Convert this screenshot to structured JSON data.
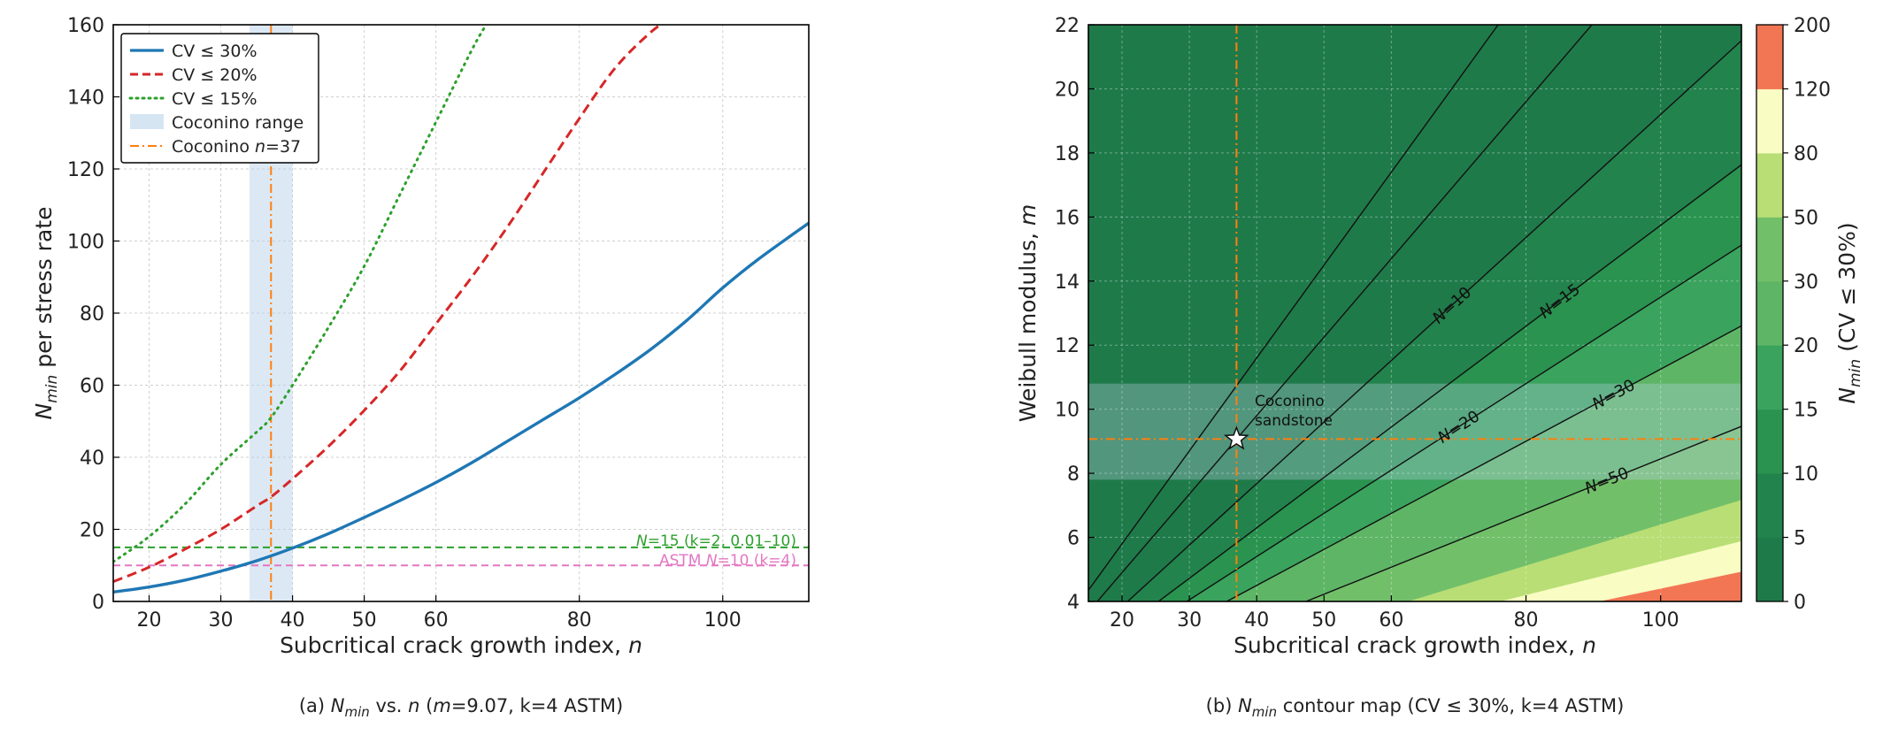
{
  "chart_data": [
    {
      "type": "line",
      "caption": "(a)  N_min vs. n  (m=9.07, k=4 ASTM)",
      "caption_parts": {
        "prefix": "(a)  ",
        "sym": "N",
        "sub": "min",
        "rest": " vs. ",
        "n": "n",
        "tail1": "  (",
        "m": "m",
        "tail2": "=9.07, k=4 ASTM)"
      },
      "xlabel": "Subcritical crack growth index, n",
      "xlabel_parts": {
        "text": "Subcritical crack growth index, ",
        "var": "n"
      },
      "ylabel": "N_min per stress rate",
      "ylabel_parts": {
        "sym": "N",
        "sub": "min",
        "text": " per stress rate"
      },
      "xlim": [
        15,
        112
      ],
      "ylim": [
        0,
        160
      ],
      "xticks": [
        20,
        30,
        40,
        50,
        60,
        80,
        100
      ],
      "yticks": [
        0,
        20,
        40,
        60,
        80,
        100,
        120,
        140,
        160
      ],
      "grid": true,
      "legend_position": "top-left",
      "series": [
        {
          "name": "CV ≤ 30%",
          "style": "solid",
          "color": "#1f77b4",
          "x": [
            15,
            20,
            25,
            30,
            35,
            40,
            45,
            50,
            55,
            60,
            65,
            70,
            75,
            80,
            85,
            90,
            95,
            100,
            105,
            112
          ],
          "y": [
            2.6,
            4.0,
            5.9,
            8.4,
            11.3,
            14.8,
            18.8,
            23.3,
            28.0,
            33.0,
            38.5,
            44.5,
            50.5,
            56.5,
            63,
            70,
            78,
            87,
            95,
            105
          ]
        },
        {
          "name": "CV ≤ 20%",
          "style": "dashed",
          "color": "#d62728",
          "x": [
            15,
            20,
            25,
            30,
            35,
            37,
            40,
            45,
            50,
            55,
            60,
            65,
            70,
            75,
            80,
            85,
            90,
            93
          ],
          "y": [
            5.5,
            9.5,
            14.5,
            20,
            26.5,
            29,
            34,
            43,
            53,
            64,
            77,
            90,
            104,
            119,
            134,
            148,
            158,
            162
          ]
        },
        {
          "name": "CV ≤ 15%",
          "style": "dotted",
          "color": "#2ca02c",
          "x": [
            15,
            20,
            25,
            30,
            35,
            37,
            40,
            45,
            50,
            55,
            60,
            65,
            67
          ],
          "y": [
            11,
            18,
            27,
            38,
            47,
            51,
            60,
            76,
            93,
            113,
            133,
            153,
            160
          ]
        }
      ],
      "shaded_band": {
        "name": "Coconino range",
        "x_from": 34,
        "x_to": 40,
        "color": "#b9d3ea"
      },
      "vline": {
        "name": "Coconino n=37",
        "name_parts": {
          "text": "Coconino ",
          "var": "n",
          "rest": "=37"
        },
        "x": 37,
        "color": "#ff7f0e"
      },
      "hlines": [
        {
          "y": 15,
          "label": "N=15 (k=2, 0.01–10)",
          "label_parts": {
            "sym": "N",
            "rest": "=15 (k=2, 0.01–10)"
          },
          "color": "#2ca02c"
        },
        {
          "y": 10,
          "label": "ASTM N=10 (k=4)",
          "label_parts": {
            "pre": "ASTM ",
            "sym": "N",
            "rest": "=10 (k=4)"
          },
          "color": "#e377c2"
        }
      ]
    },
    {
      "type": "heatmap",
      "caption": "(b)  N_min contour map (CV ≤ 30%, k=4 ASTM)",
      "caption_parts": {
        "prefix": "(b)  ",
        "sym": "N",
        "sub": "min",
        "rest": " contour map (CV ≤ 30%, k=4 ASTM)"
      },
      "xlabel": "Subcritical crack growth index, n",
      "xlabel_parts": {
        "text": "Subcritical crack growth index, ",
        "var": "n"
      },
      "ylabel": "Weibull modulus, m",
      "ylabel_parts": {
        "text": "Weibull modulus, ",
        "var": "m"
      },
      "xlim": [
        15,
        112
      ],
      "ylim": [
        4,
        22
      ],
      "xticks": [
        20,
        30,
        40,
        50,
        60,
        80,
        100
      ],
      "yticks": [
        4,
        6,
        8,
        10,
        12,
        14,
        16,
        18,
        20,
        22
      ],
      "grid": true,
      "contour_levels": [
        {
          "label": "N=10",
          "label_parts": {
            "sym": "N",
            "rest": "=10"
          },
          "slope": 0.192,
          "label_x": 69
        },
        {
          "label": "N=15",
          "label_parts": {
            "sym": "N",
            "rest": "=15"
          },
          "slope": 0.1574,
          "label_x": 85
        },
        {
          "label": "N=20",
          "label_parts": {
            "sym": "N",
            "rest": "=20"
          },
          "slope": 0.135,
          "label_x": 70
        },
        {
          "label": "N=30",
          "label_parts": {
            "sym": "N",
            "rest": "=30"
          },
          "slope": 0.1125,
          "label_x": 93
        },
        {
          "label": "N=50",
          "label_parts": {
            "sym": "N",
            "rest": "=50"
          },
          "slope": 0.0845,
          "label_x": 92
        }
      ],
      "fill_bands": [
        {
          "from": 0,
          "to": 5,
          "slope_boundary": null,
          "color": "#1f7a4a"
        },
        {
          "from": 5,
          "to": 10,
          "slope_boundary": 0.192,
          "color": "#22834c"
        },
        {
          "from": 10,
          "to": 15,
          "slope_boundary": 0.1574,
          "color": "#29934f"
        },
        {
          "from": 15,
          "to": 20,
          "slope_boundary": 0.135,
          "color": "#3aa35d"
        },
        {
          "from": 20,
          "to": 30,
          "slope_boundary": 0.1125,
          "color": "#5eb566"
        },
        {
          "from": 30,
          "to": 50,
          "slope_boundary": 0.0845,
          "color": "#72bf6a"
        },
        {
          "from": 50,
          "to": 80,
          "slope_boundary": 0.064,
          "color": "#b8de75"
        },
        {
          "from": 80,
          "to": 120,
          "slope_boundary": 0.0525,
          "color": "#f9fcc3"
        },
        {
          "from": 120,
          "to": 200,
          "slope_boundary": 0.044,
          "color": "#f27654"
        }
      ],
      "white_boundary_slope": 0.0254,
      "dark_corner_slope": 0.295,
      "colorbar": {
        "label": "N_min (CV ≤ 30%)",
        "label_parts": {
          "sym": "N",
          "sub": "min",
          "rest": " (CV ≤ 30%)"
        },
        "ticks": [
          "0",
          "5",
          "10",
          "15",
          "20",
          "30",
          "50",
          "80",
          "120",
          "200"
        ],
        "colors": [
          "#1f7a4a",
          "#22834c",
          "#29934f",
          "#3aa35d",
          "#5eb566",
          "#72bf6a",
          "#b8de75",
          "#f9fcc3",
          "#f27654"
        ]
      },
      "marker": {
        "x": 37,
        "y": 9.07,
        "label_lines": [
          "Coconino",
          "sandstone"
        ]
      },
      "vline": {
        "x": 37,
        "color": "#ff7f0e"
      },
      "hline": {
        "y": 9.07,
        "color": "#ff7f0e"
      },
      "band": {
        "y_from": 7.8,
        "y_to": 10.8
      }
    }
  ]
}
